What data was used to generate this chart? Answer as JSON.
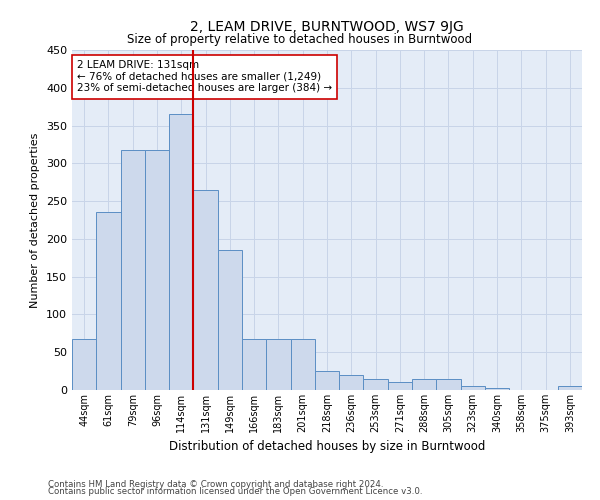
{
  "title": "2, LEAM DRIVE, BURNTWOOD, WS7 9JG",
  "subtitle": "Size of property relative to detached houses in Burntwood",
  "xlabel": "Distribution of detached houses by size in Burntwood",
  "ylabel": "Number of detached properties",
  "footer1": "Contains HM Land Registry data © Crown copyright and database right 2024.",
  "footer2": "Contains public sector information licensed under the Open Government Licence v3.0.",
  "categories": [
    "44sqm",
    "61sqm",
    "79sqm",
    "96sqm",
    "114sqm",
    "131sqm",
    "149sqm",
    "166sqm",
    "183sqm",
    "201sqm",
    "218sqm",
    "236sqm",
    "253sqm",
    "271sqm",
    "288sqm",
    "305sqm",
    "323sqm",
    "340sqm",
    "358sqm",
    "375sqm",
    "393sqm"
  ],
  "values": [
    67,
    235,
    318,
    318,
    365,
    265,
    185,
    68,
    68,
    67,
    25,
    20,
    15,
    10,
    15,
    15,
    5,
    2,
    0,
    0,
    5
  ],
  "bar_color": "#cdd9ec",
  "bar_edge_color": "#5b8ec4",
  "red_line_x": 5.0,
  "annotation_text": "2 LEAM DRIVE: 131sqm\n← 76% of detached houses are smaller (1,249)\n23% of semi-detached houses are larger (384) →",
  "annotation_box_color": "#ffffff",
  "annotation_box_edge_color": "#cc0000",
  "red_line_color": "#cc0000",
  "grid_color": "#c8d4e8",
  "bg_color": "#e4ecf7",
  "ylim": [
    0,
    450
  ],
  "yticks": [
    0,
    50,
    100,
    150,
    200,
    250,
    300,
    350,
    400,
    450
  ]
}
